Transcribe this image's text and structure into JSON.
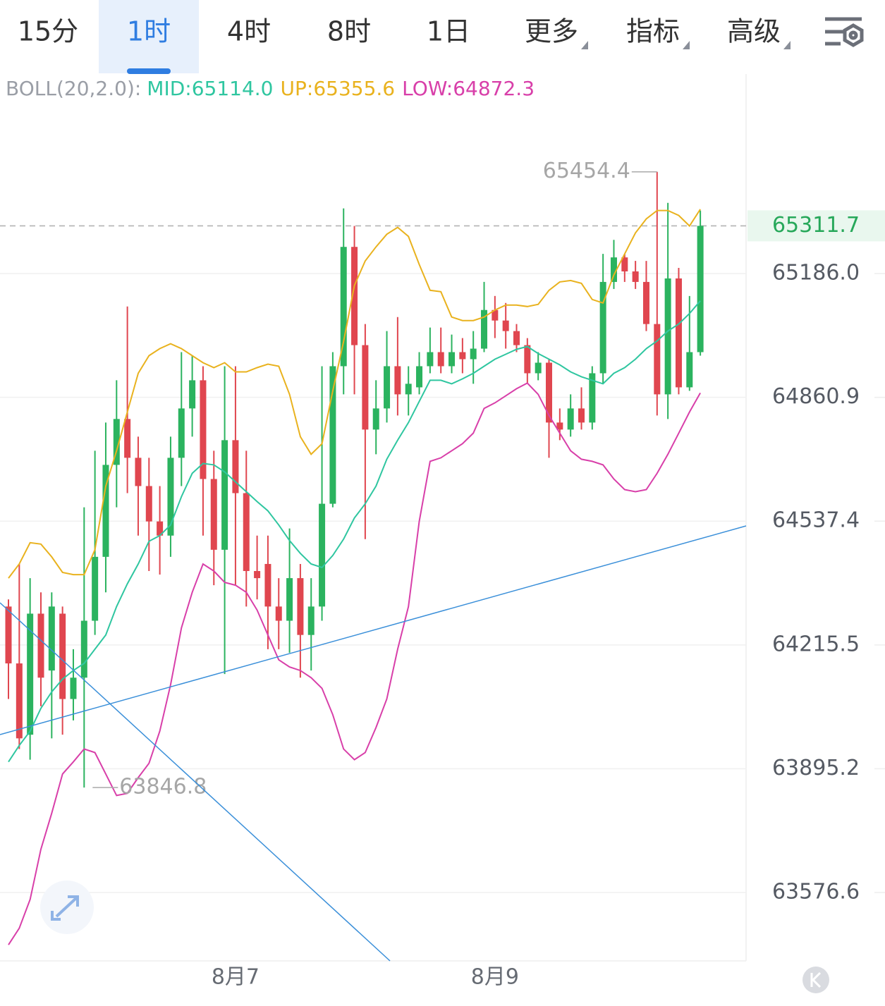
{
  "tabs": [
    {
      "label": "15分",
      "active": false,
      "dropdown": false
    },
    {
      "label": "1时",
      "active": true,
      "dropdown": false
    },
    {
      "label": "4时",
      "active": false,
      "dropdown": false
    },
    {
      "label": "8时",
      "active": false,
      "dropdown": false
    },
    {
      "label": "1日",
      "active": false,
      "dropdown": false
    },
    {
      "label": "更多",
      "active": false,
      "dropdown": true
    },
    {
      "label": "指标",
      "active": false,
      "dropdown": true
    },
    {
      "label": "高级",
      "active": false,
      "dropdown": true
    }
  ],
  "chart_data": {
    "type": "candlestick",
    "indicator": "BOLL(20,2.0):",
    "log_scale": true,
    "grid": true,
    "up_color": "#2bb35f",
    "down_color": "#e0464f",
    "categories": [
      null,
      null,
      null,
      null,
      null,
      null,
      null,
      null,
      null,
      null,
      null,
      null,
      null,
      null,
      null,
      null,
      null,
      null,
      null,
      null,
      null,
      "8月7",
      null,
      null,
      null,
      null,
      null,
      null,
      null,
      null,
      null,
      null,
      null,
      null,
      null,
      null,
      null,
      null,
      null,
      null,
      null,
      null,
      null,
      null,
      null,
      "8月9",
      null,
      null,
      null,
      null,
      null,
      null,
      null,
      null,
      null,
      null,
      null,
      null,
      null,
      null,
      null,
      null,
      null,
      null,
      null
    ],
    "open": [
      64315.2,
      64167.6,
      63983.1,
      64296.7,
      64149.2,
      64296.7,
      64075.4,
      64130.7,
      64278.3,
      64444.4,
      64684.2,
      64804.2,
      64702.7,
      64628.9,
      64536.6,
      64499.7,
      64702.7,
      64831.8,
      64905.6,
      64647.3,
      64462.8,
      64748.8,
      64610.4,
      64407.5,
      64425.9,
      64315.2,
      64278.3,
      64389.0,
      64241.4,
      64315.2,
      64582.7,
      64942.5,
      65256.2,
      64997.8,
      64776.5,
      64831.8,
      64942.5,
      64868.7,
      64887.1,
      64942.5,
      64979.4,
      64942.5,
      64979.4,
      64960.9,
      64988.6,
      65090.1,
      65062.4,
      65034.7,
      64997.8,
      64924.0,
      64951.7,
      64794.9,
      64776.5,
      64831.8,
      64794.9,
      64924.0,
      65163.9,
      65228.5,
      65191.6,
      65163.9,
      65053.2,
      64868.7,
      65173.1,
      64887.1,
      64979.4
    ],
    "high": [
      64333.7,
      64425.9,
      64389.0,
      64352.1,
      64352.1,
      64315.2,
      64204.5,
      64573.5,
      64721.1,
      64794.9,
      64905.6,
      65099.3,
      64758.0,
      64702.7,
      64628.9,
      64758.0,
      64979.4,
      64970.2,
      64942.5,
      64721.1,
      64942.5,
      64942.5,
      64721.1,
      64499.7,
      64499.7,
      64389.0,
      64518.2,
      64425.9,
      64389.0,
      64942.5,
      64979.4,
      65357.6,
      65311.5,
      65053.2,
      64905.6,
      65034.7,
      65071.6,
      64942.5,
      64979.4,
      65044.0,
      65044.0,
      65025.5,
      65016.3,
      65034.7,
      65163.9,
      65127.0,
      65108.5,
      65053.2,
      65016.3,
      64979.4,
      64960.9,
      64831.8,
      64868.7,
      64887.1,
      64942.5,
      65237.7,
      65274.6,
      65237.7,
      65219.3,
      65219.3,
      65454.4,
      65372.4,
      65200.8,
      65127.0,
      65352.1
    ],
    "low": [
      64075.4,
      63946.2,
      63918.6,
      64056.9,
      63973.7,
      63983.1,
      64020.0,
      63846.8,
      64241.4,
      64352.1,
      64573.5,
      64610.4,
      64499.7,
      64407.5,
      64398.2,
      64444.4,
      64628.9,
      64758.0,
      64499.7,
      64370.6,
      64140.0,
      64370.6,
      64315.2,
      64333.7,
      64204.5,
      64204.5,
      64195.3,
      64130.7,
      64149.2,
      64278.3,
      64573.5,
      64868.7,
      64868.7,
      64490.5,
      64711.9,
      64794.9,
      64813.4,
      64813.4,
      64868.7,
      64924.0,
      64924.0,
      64924.0,
      64924.0,
      64896.4,
      64979.4,
      65016.3,
      64988.6,
      64979.4,
      64896.4,
      64905.6,
      64702.7,
      64748.8,
      64758.0,
      64776.5,
      64776.5,
      64896.4,
      65145.4,
      65163.9,
      65145.4,
      65034.7,
      64813.4,
      64804.2,
      64868.7,
      64877.9,
      64970.2
    ],
    "close": [
      64167.6,
      63973.7,
      64296.7,
      64130.7,
      64315.2,
      64075.4,
      64130.7,
      64278.3,
      64444.4,
      64684.2,
      64804.2,
      64702.7,
      64628.9,
      64536.6,
      64499.7,
      64702.7,
      64831.8,
      64905.6,
      64647.3,
      64462.8,
      64748.8,
      64610.4,
      64407.5,
      64389.0,
      64315.2,
      64278.3,
      64389.0,
      64241.4,
      64315.2,
      64582.7,
      64942.5,
      65256.2,
      64997.8,
      64776.5,
      64831.8,
      64942.5,
      64868.7,
      64896.4,
      64942.5,
      64979.4,
      64942.5,
      64979.4,
      64960.9,
      64988.6,
      65090.1,
      65062.4,
      65034.7,
      64997.8,
      64924.0,
      64951.7,
      64794.9,
      64776.5,
      64831.8,
      64794.9,
      64924.0,
      65163.9,
      65228.5,
      65191.6,
      65163.9,
      65053.2,
      64868.7,
      65173.1,
      64887.1,
      64979.4,
      65311.7
    ],
    "series": [
      {
        "name": "MID:65114.0",
        "color": "#2fc6a0",
        "values": [
          63913.0,
          63955.4,
          63992.3,
          64051.4,
          64093.8,
          64127.0,
          64149.2,
          64167.6,
          64204.5,
          64241.4,
          64315.2,
          64374.2,
          64425.9,
          64484.9,
          64499.7,
          64527.4,
          64601.2,
          64662.1,
          64687.9,
          64684.2,
          64665.8,
          64639.9,
          64614.1,
          64588.3,
          64564.3,
          64527.4,
          64486.8,
          64453.6,
          64425.9,
          64416.7,
          64448.0,
          64490.5,
          64545.8,
          64582.7,
          64628.9,
          64699.0,
          64748.8,
          64794.9,
          64850.3,
          64905.6,
          64905.6,
          64896.4,
          64909.3,
          64924.0,
          64942.5,
          64960.9,
          64973.9,
          64986.8,
          64994.2,
          64975.7,
          64960.9,
          64946.2,
          64927.7,
          64914.8,
          64905.6,
          64896.4,
          64924.0,
          64938.8,
          64960.9,
          64988.6,
          65008.9,
          65034.7,
          65053.2,
          65080.9,
          65114.0
        ]
      },
      {
        "name": "UP:65355.6",
        "color": "#e9b21e",
        "values": [
          64389.0,
          64425.9,
          64481.3,
          64477.6,
          64444.4,
          64403.8,
          64398.2,
          64398.2,
          64462.8,
          64628.9,
          64721.1,
          64822.6,
          64924.0,
          64970.2,
          64988.6,
          65001.5,
          64988.6,
          64970.2,
          64951.7,
          64938.8,
          64951.7,
          64927.7,
          64927.7,
          64938.8,
          64948.0,
          64942.5,
          64868.7,
          64758.0,
          64711.9,
          64739.6,
          64877.9,
          65007.1,
          65154.7,
          65219.3,
          65256.2,
          65289.4,
          65307.8,
          65283.8,
          65210.0,
          65141.8,
          65138.1,
          65071.6,
          65062.4,
          65062.4,
          65071.6,
          65090.1,
          65103.0,
          65103.0,
          65099.3,
          65104.9,
          65141.8,
          65163.9,
          65167.6,
          65160.2,
          65117.8,
          65108.5,
          65182.4,
          65237.7,
          65293.1,
          65330.0,
          65352.1,
          65352.1,
          65339.2,
          65311.5,
          65355.6
        ]
      },
      {
        "name": "LOW:64872.3",
        "color": "#d83fa9",
        "values": [
          63442.5,
          63485.0,
          63558.8,
          63687.9,
          63780.2,
          63881.6,
          63913.0,
          63946.2,
          63937.0,
          63881.6,
          63826.3,
          63831.8,
          63872.4,
          63909.3,
          63992.3,
          64112.3,
          64259.9,
          64352.1,
          64425.9,
          64407.5,
          64377.9,
          64370.6,
          64352.1,
          64306.0,
          64241.4,
          64176.8,
          64158.4,
          64149.2,
          64130.7,
          64103.0,
          64034.8,
          63946.2,
          63918.6,
          63937.0,
          64001.6,
          64075.4,
          64204.5,
          64315.2,
          64536.6,
          64693.4,
          64702.7,
          64721.1,
          64739.6,
          64767.2,
          64831.8,
          64846.6,
          64865.0,
          64883.5,
          64898.2,
          64868.7,
          64813.4,
          64767.2,
          64721.1,
          64699.0,
          64693.4,
          64684.2,
          64647.3,
          64619.6,
          64614.1,
          64619.6,
          64662.1,
          64711.9,
          64767.2,
          64822.6,
          64872.3
        ]
      }
    ],
    "last_price": 65311.7,
    "high_marker": 65454.4,
    "low_marker": 63846.8,
    "ylim": [
      63401.3,
      65713.4
    ],
    "yticks": [
      {
        "value": 65186,
        "label": "65186.0"
      },
      64860.9,
      64537.4,
      64215.5,
      63895.2,
      63576.6
    ]
  }
}
